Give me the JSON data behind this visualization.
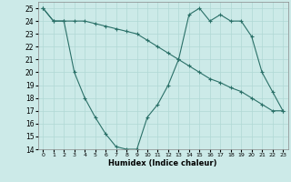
{
  "line1_x": [
    0,
    1,
    2,
    3,
    4,
    5,
    6,
    7,
    8,
    9,
    10,
    11,
    12,
    13,
    14,
    15,
    16,
    17,
    18,
    19,
    20,
    21,
    22,
    23
  ],
  "line1_y": [
    25.0,
    24.0,
    24.0,
    24.0,
    24.0,
    23.8,
    23.6,
    23.4,
    23.2,
    23.0,
    22.5,
    22.0,
    21.5,
    21.0,
    20.5,
    20.0,
    19.5,
    19.2,
    18.8,
    18.5,
    18.0,
    17.5,
    17.0,
    17.0
  ],
  "line2_x": [
    0,
    1,
    2,
    3,
    4,
    5,
    6,
    7,
    8,
    9,
    10,
    11,
    12,
    13,
    14,
    15,
    16,
    17,
    18,
    19,
    20,
    21,
    22,
    23
  ],
  "line2_y": [
    25.0,
    24.0,
    24.0,
    20.0,
    18.0,
    16.5,
    15.2,
    14.2,
    14.0,
    14.0,
    16.5,
    17.5,
    19.0,
    21.0,
    24.5,
    25.0,
    24.0,
    24.5,
    24.0,
    24.0,
    22.8,
    20.0,
    18.5,
    17.0
  ],
  "color": "#2a7068",
  "bg_color": "#cceae8",
  "grid_color": "#b0d8d5",
  "xlim": [
    -0.5,
    23.5
  ],
  "ylim": [
    14,
    25.5
  ],
  "yticks": [
    14,
    15,
    16,
    17,
    18,
    19,
    20,
    21,
    22,
    23,
    24,
    25
  ],
  "xticks": [
    0,
    1,
    2,
    3,
    4,
    5,
    6,
    7,
    8,
    9,
    10,
    11,
    12,
    13,
    14,
    15,
    16,
    17,
    18,
    19,
    20,
    21,
    22,
    23
  ],
  "xlabel": "Humidex (Indice chaleur)"
}
